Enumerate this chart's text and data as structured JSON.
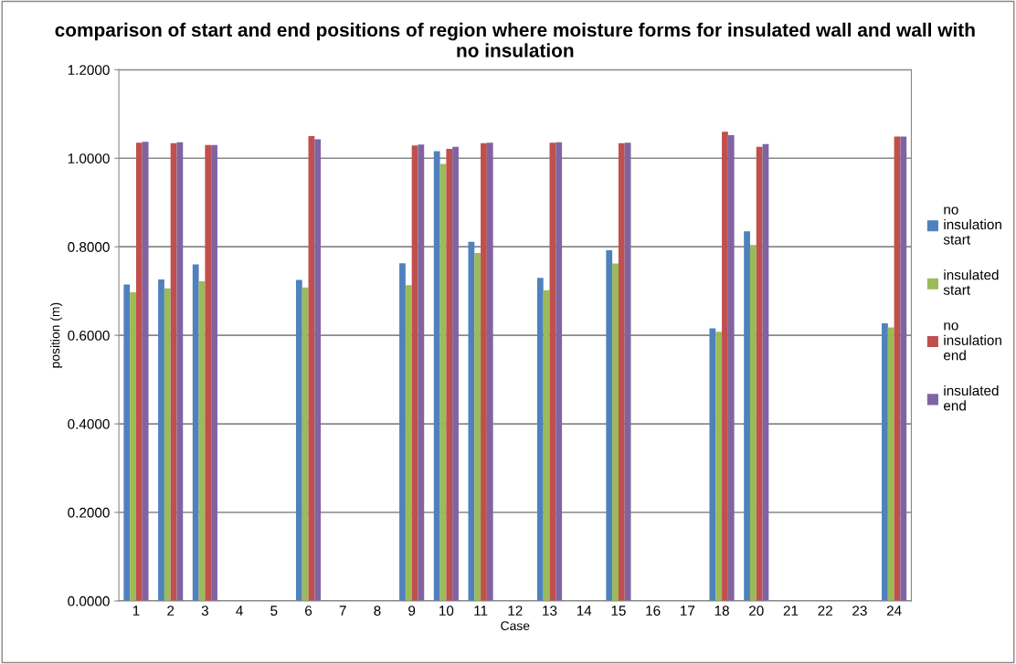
{
  "chart_data": {
    "type": "bar",
    "title": "comparison of start and end positions of region where moisture forms for insulated wall and wall with no insulation",
    "xlabel": "Case",
    "ylabel": "position (m)",
    "categories": [
      "1",
      "2",
      "3",
      "4",
      "5",
      "6",
      "7",
      "8",
      "9",
      "10",
      "11",
      "12",
      "13",
      "14",
      "15",
      "16",
      "17",
      "18",
      "20",
      "21",
      "22",
      "23",
      "24"
    ],
    "series": [
      {
        "name": "no insulation start",
        "color": "#4f81bd",
        "values": [
          0.715,
          0.726,
          0.76,
          null,
          null,
          0.725,
          null,
          null,
          0.763,
          1.016,
          0.811,
          null,
          0.73,
          null,
          0.792,
          null,
          null,
          0.616,
          0.835,
          null,
          null,
          null,
          0.627
        ]
      },
      {
        "name": "insulated start",
        "color": "#9bbb59",
        "values": [
          0.697,
          0.706,
          0.722,
          null,
          null,
          0.708,
          null,
          null,
          0.713,
          0.987,
          0.786,
          null,
          0.702,
          null,
          0.762,
          null,
          null,
          0.608,
          0.804,
          null,
          null,
          null,
          0.618
        ]
      },
      {
        "name": "no insulation end",
        "color": "#c0504d",
        "values": [
          1.035,
          1.034,
          1.03,
          null,
          null,
          1.05,
          null,
          null,
          1.029,
          1.021,
          1.034,
          null,
          1.035,
          null,
          1.034,
          null,
          null,
          1.06,
          1.026,
          null,
          null,
          null,
          1.049
        ]
      },
      {
        "name": "insulated end",
        "color": "#8064a2",
        "values": [
          1.037,
          1.036,
          1.03,
          null,
          null,
          1.043,
          null,
          null,
          1.031,
          1.026,
          1.035,
          null,
          1.036,
          null,
          1.035,
          null,
          null,
          1.052,
          1.032,
          null,
          null,
          null,
          1.049
        ]
      }
    ],
    "ylim": [
      0,
      1.2
    ],
    "yticks": [
      {
        "value": 0,
        "label": "0.0000"
      },
      {
        "value": 0.2,
        "label": "0.2000"
      },
      {
        "value": 0.4,
        "label": "0.4000"
      },
      {
        "value": 0.6,
        "label": "0.6000"
      },
      {
        "value": 0.8,
        "label": "0.8000"
      },
      {
        "value": 1.0,
        "label": "1.0000"
      },
      {
        "value": 1.2,
        "label": "1.2000"
      }
    ],
    "grid": "y",
    "legend": "right"
  }
}
